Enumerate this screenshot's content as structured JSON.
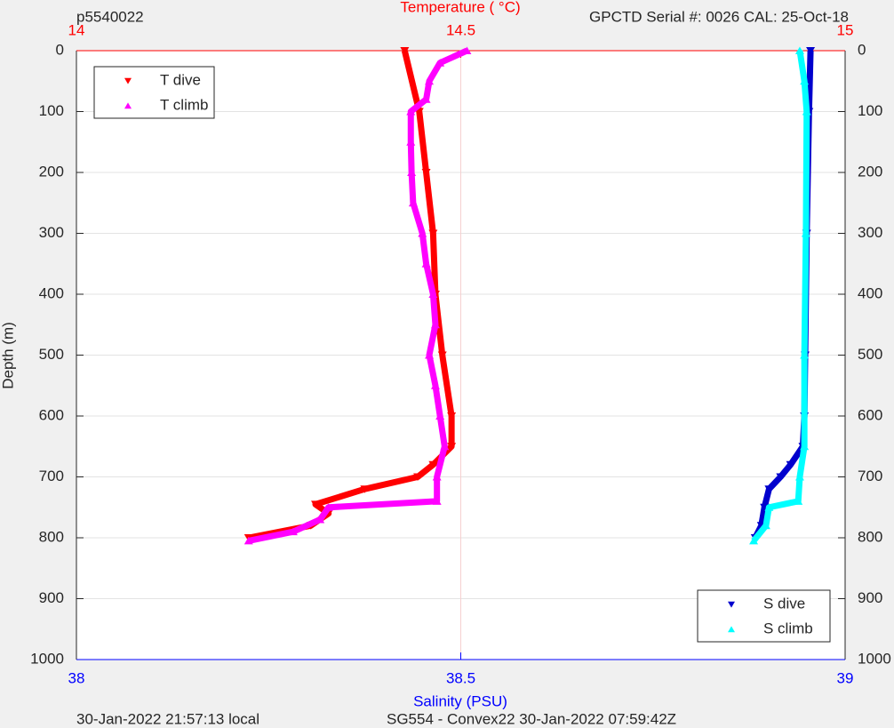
{
  "top_left_label": "p5540022",
  "top_right_label": "GPCTD Serial #: 0026 CAL: 25-Oct-18",
  "footer_left": "30-Jan-2022 21:57:13 local",
  "footer_right": "SG554 - Convex22 30-Jan-2022 07:59:42Z",
  "chart_data": {
    "type": "scatter",
    "top_axis_label": "Temperature (    °C)",
    "bottom_axis_label": "Salinity (PSU)",
    "y_label": "Depth (m)",
    "ylim": [
      1000,
      0
    ],
    "yticks": [
      0,
      100,
      200,
      300,
      400,
      500,
      600,
      700,
      800,
      900,
      1000
    ],
    "x2lim": [
      14,
      15
    ],
    "x2ticks": [
      14,
      14.5,
      15
    ],
    "xlim": [
      38,
      39
    ],
    "xticks": [
      38,
      38.5,
      39
    ],
    "grid": true,
    "series": [
      {
        "name": "T dive",
        "color": "#ff0000",
        "marker": "down",
        "axis": "x2",
        "legend": "upper left",
        "x": [
          14.427,
          14.446,
          14.455,
          14.464,
          14.467,
          14.476,
          14.488,
          14.488,
          14.464,
          14.444,
          14.375,
          14.311,
          14.328,
          14.305,
          14.224
        ],
        "y": [
          0,
          100,
          200,
          300,
          400,
          500,
          600,
          650,
          680,
          700,
          720,
          745,
          760,
          780,
          800
        ]
      },
      {
        "name": "T climb",
        "color": "#ff00ff",
        "marker": "up",
        "axis": "x2",
        "legend": "upper left",
        "x": [
          14.508,
          14.473,
          14.459,
          14.455,
          14.435,
          14.435,
          14.436,
          14.438,
          14.45,
          14.455,
          14.464,
          14.467,
          14.459,
          14.467,
          14.473,
          14.479,
          14.469,
          14.469,
          14.328,
          14.317,
          14.282,
          14.224
        ],
        "y": [
          0,
          20,
          50,
          80,
          100,
          150,
          200,
          250,
          300,
          350,
          400,
          450,
          500,
          550,
          600,
          650,
          700,
          740,
          750,
          770,
          790,
          805
        ]
      },
      {
        "name": "S dive",
        "color": "#0000cd",
        "marker": "down",
        "axis": "x",
        "legend": "lower right",
        "x": [
          38.955,
          38.953,
          38.95,
          38.948,
          38.947,
          38.945,
          38.929,
          38.916,
          38.901,
          38.895,
          38.891,
          38.883
        ],
        "y": [
          0,
          100,
          300,
          500,
          600,
          650,
          680,
          700,
          720,
          750,
          780,
          800
        ]
      },
      {
        "name": "S climb",
        "color": "#00ffff",
        "marker": "up",
        "axis": "x",
        "legend": "lower right",
        "x": [
          38.941,
          38.947,
          38.95,
          38.949,
          38.947,
          38.947,
          38.941,
          38.939,
          38.901,
          38.897,
          38.881
        ],
        "y": [
          0,
          50,
          100,
          300,
          500,
          650,
          700,
          740,
          750,
          780,
          805
        ]
      }
    ]
  }
}
